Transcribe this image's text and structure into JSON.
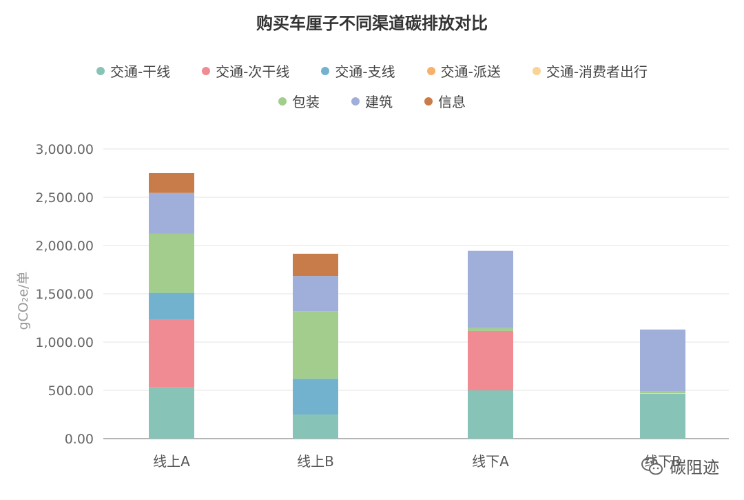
{
  "chart_data": {
    "type": "bar",
    "stacked": true,
    "title": "购买车厘子不同渠道碳排放对比",
    "ylabel": "gCO₂e/单",
    "xlabel": "",
    "ylim": [
      0,
      3000
    ],
    "yticks": [
      "0.00",
      "500.00",
      "1,000.00",
      "1,500.00",
      "2,000.00",
      "2,500.00",
      "3,000.00"
    ],
    "categories": [
      "线上A",
      "线上B",
      "线下A",
      "线下B"
    ],
    "grid": true,
    "legend_position": "top",
    "series": [
      {
        "name": "交通-干线",
        "color": "#88c3b8",
        "values": [
          530,
          250,
          500,
          465
        ]
      },
      {
        "name": "交通-次干线",
        "color": "#f08a93",
        "values": [
          700,
          0,
          615,
          0
        ]
      },
      {
        "name": "交通-支线",
        "color": "#72b2cf",
        "values": [
          280,
          370,
          0,
          0
        ]
      },
      {
        "name": "交通-派送",
        "color": "#f7b16a",
        "values": [
          0,
          0,
          0,
          0
        ]
      },
      {
        "name": "交通-消费者出行",
        "color": "#f8d596",
        "values": [
          0,
          0,
          0,
          5
        ]
      },
      {
        "name": "包装",
        "color": "#a3cd8d",
        "values": [
          615,
          700,
          30,
          20
        ]
      },
      {
        "name": "建筑",
        "color": "#9fafda",
        "values": [
          420,
          365,
          800,
          640
        ]
      },
      {
        "name": "信息",
        "color": "#c87c4a",
        "values": [
          205,
          230,
          0,
          0
        ]
      }
    ]
  },
  "watermark": {
    "text": "碳阻迹",
    "icon": "wechat-icon"
  }
}
